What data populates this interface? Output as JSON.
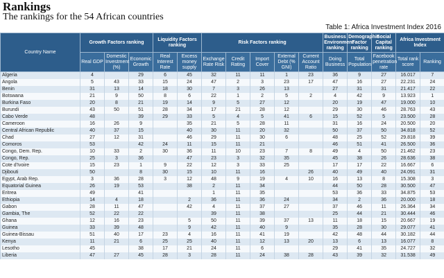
{
  "header": {
    "title": "Rankings",
    "subtitle": "The rankings for the 54 African countries"
  },
  "table": {
    "caption": "Table 1: Africa Investment Index 2016",
    "country_header": "Country Name",
    "groups": [
      "Growth Factors ranking",
      "Liquidity Factors ranking",
      "Risk Factors ranking",
      "Business Environment ranking",
      "Demographic Factor ranking",
      "Social Capital ranking",
      "Africa Investment Index"
    ],
    "columns": [
      "Real GDP",
      "Domestic Investment (%)",
      "Economic Growth",
      "Real Interest Rate",
      "Excess money supply",
      "Exchange Rate Risk",
      "Credit Rating",
      "Import Cover",
      "External Debt (% GNI)",
      "Current Account Ratio",
      "Doing Business",
      "Total Population",
      "Facebook penetration rate",
      "Total rank score",
      "Ranking"
    ],
    "rows": [
      [
        "Algeria",
        "4",
        null,
        "29",
        "6",
        "45",
        "32",
        "11",
        "11",
        "1",
        "23",
        "36",
        "9",
        "27",
        "16.017",
        "7"
      ],
      [
        "Angola",
        "5",
        "43",
        "33",
        "15",
        "24",
        "47",
        "2",
        "3",
        "23",
        "17",
        "47",
        "16",
        "27",
        "22.231",
        "24"
      ],
      [
        "Benin",
        "31",
        "13",
        "14",
        "18",
        "30",
        "7",
        "3",
        "26",
        "13",
        null,
        "27",
        "31",
        "31",
        "21.417",
        "22"
      ],
      [
        "Botswana",
        "21",
        "9",
        "50",
        "8",
        "6",
        "22",
        "1",
        "2",
        "5",
        "2",
        "4",
        "42",
        "9",
        "13.923",
        "1"
      ],
      [
        "Burkina Faso",
        "20",
        "8",
        "21",
        "19",
        "14",
        "9",
        "5",
        "27",
        "12",
        null,
        "20",
        "19",
        "47",
        "19.000",
        "10"
      ],
      [
        "Burundi",
        "43",
        "50",
        "51",
        "28",
        "34",
        "17",
        "21",
        "28",
        "12",
        null,
        "29",
        "30",
        "46",
        "28.763",
        "43"
      ],
      [
        "Cabo Verde",
        "48",
        null,
        "39",
        "29",
        "33",
        "5",
        "4",
        "5",
        "41",
        "6",
        "15",
        "52",
        "5",
        "23.500",
        "28"
      ],
      [
        "Cameroon",
        "16",
        "26",
        "9",
        null,
        "35",
        "21",
        "5",
        "28",
        "11",
        null,
        "31",
        "16",
        "24",
        "20.500",
        "20"
      ],
      [
        "Central African Republic",
        "40",
        "37",
        "15",
        null,
        "40",
        "30",
        "11",
        "20",
        "32",
        null,
        "50",
        "37",
        "50",
        "34.818",
        "52"
      ],
      [
        "Chad",
        "27",
        "12",
        "31",
        null,
        "46",
        "29",
        "11",
        "30",
        "6",
        null,
        "48",
        "25",
        "52",
        "29.818",
        "39"
      ],
      [
        "Comoros",
        "53",
        null,
        "42",
        "24",
        "11",
        "15",
        "11",
        "21",
        null,
        null,
        "46",
        "51",
        "41",
        "26.500",
        "36"
      ],
      [
        "Congo, Dem. Rep.",
        "10",
        "33",
        "2",
        "30",
        "36",
        "11",
        "10",
        "23",
        "7",
        "8",
        "49",
        "4",
        "50",
        "21.462",
        "23"
      ],
      [
        "Congo, Rep.",
        "25",
        "3",
        "36",
        null,
        "47",
        "23",
        "3",
        "32",
        "35",
        null,
        "45",
        "38",
        "26",
        "28.636",
        "38"
      ],
      [
        "Cote d'Ivoire",
        "15",
        "23",
        "1",
        "9",
        "22",
        "12",
        "3",
        "33",
        "25",
        null,
        "17",
        "17",
        "22",
        "16.667",
        "6"
      ],
      [
        "Djibouti",
        "50",
        null,
        "8",
        "30",
        "15",
        "10",
        "11",
        "16",
        null,
        "26",
        "40",
        "49",
        "40",
        "24.091",
        "31"
      ],
      [
        "Egypt, Arab Rep.",
        "3",
        "36",
        "28",
        "3",
        "12",
        "48",
        "9",
        "19",
        "4",
        "10",
        "16",
        "13",
        "8",
        "15.308",
        "3"
      ],
      [
        "Equatorial Guinea",
        "26",
        "19",
        "53",
        null,
        "38",
        "2",
        "11",
        "34",
        null,
        null,
        "44",
        "50",
        "28",
        "30.500",
        "47"
      ],
      [
        "Eritrea",
        "49",
        null,
        "41",
        null,
        null,
        "1",
        "11",
        "35",
        null,
        null,
        "53",
        "36",
        "33",
        "34.875",
        "53"
      ],
      [
        "Ethiopia",
        "14",
        "4",
        "18",
        null,
        "2",
        "36",
        "11",
        "36",
        "24",
        null,
        "34",
        "2",
        "36",
        "20.000",
        "18"
      ],
      [
        "Gabon",
        "28",
        "11",
        "47",
        null,
        "42",
        "4",
        "11",
        "37",
        "27",
        null,
        "37",
        "46",
        "11",
        "26.364",
        "34"
      ],
      [
        "Gambia, The",
        "52",
        "22",
        "22",
        null,
        null,
        "39",
        "11",
        "38",
        null,
        null,
        "25",
        "44",
        "21",
        "30.444",
        "46"
      ],
      [
        "Ghana",
        "12",
        "16",
        "23",
        null,
        "5",
        "50",
        "11",
        "39",
        "37",
        "13",
        "11",
        "18",
        "15",
        "20.667",
        "19"
      ],
      [
        "Guinea",
        "33",
        "39",
        "48",
        null,
        "9",
        "42",
        "11",
        "40",
        "9",
        null,
        "35",
        "28",
        "30",
        "29.077",
        "41"
      ],
      [
        "Guinea-Bissau",
        "51",
        "40",
        "17",
        "23",
        "4",
        "16",
        "11",
        "41",
        "19",
        null,
        "42",
        "48",
        "44",
        "30.182",
        "44"
      ],
      [
        "Kenya",
        "11",
        "21",
        "6",
        "25",
        "25",
        "40",
        "11",
        "12",
        "13",
        "20",
        "13",
        "6",
        "13",
        "16.077",
        "8"
      ],
      [
        "Lesotho",
        "45",
        null,
        "38",
        "17",
        "21",
        "24",
        "11",
        "6",
        null,
        null,
        "29",
        "41",
        "35",
        "24.727",
        "32"
      ],
      [
        "Liberia",
        "47",
        "27",
        "45",
        "28",
        "3",
        "28",
        "11",
        "24",
        "38",
        "28",
        "43",
        "39",
        "32",
        "31.538",
        "49"
      ]
    ]
  }
}
